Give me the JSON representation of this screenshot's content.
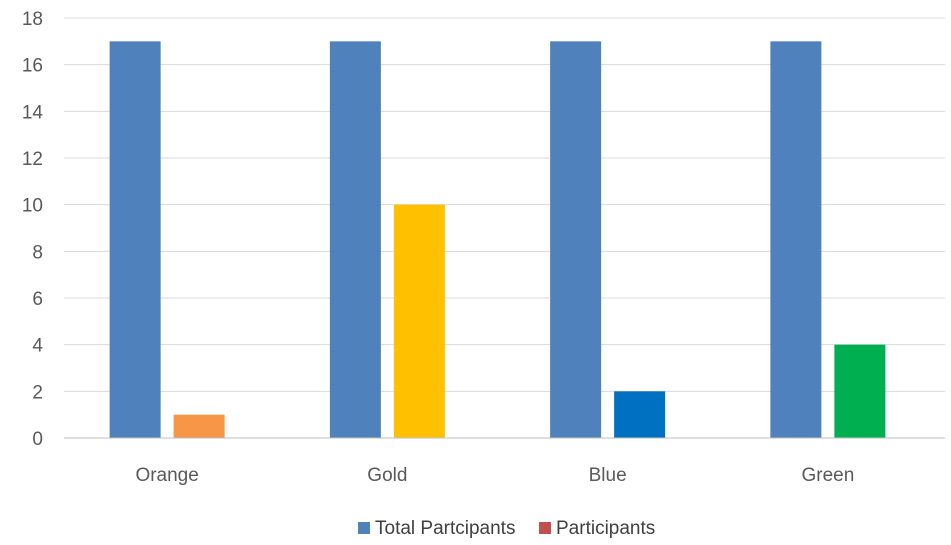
{
  "chart_data": {
    "type": "bar",
    "categories": [
      "Orange",
      "Gold",
      "Blue",
      "Green"
    ],
    "series": [
      {
        "name": "Total Partcipants",
        "values": [
          17,
          17,
          17,
          17
        ],
        "color": "#4F81BD"
      },
      {
        "name": "Participants",
        "values": [
          1,
          10,
          2,
          4
        ],
        "color": "#C0504D",
        "point_colors": [
          "#F79646",
          "#FFC000",
          "#0070C0",
          "#00B050"
        ]
      }
    ],
    "ylim": [
      0,
      18
    ],
    "yticks": [
      0,
      2,
      4,
      6,
      8,
      10,
      12,
      14,
      16,
      18
    ],
    "grid": true,
    "legend_position": "bottom",
    "title": "",
    "xlabel": "",
    "ylabel": ""
  }
}
